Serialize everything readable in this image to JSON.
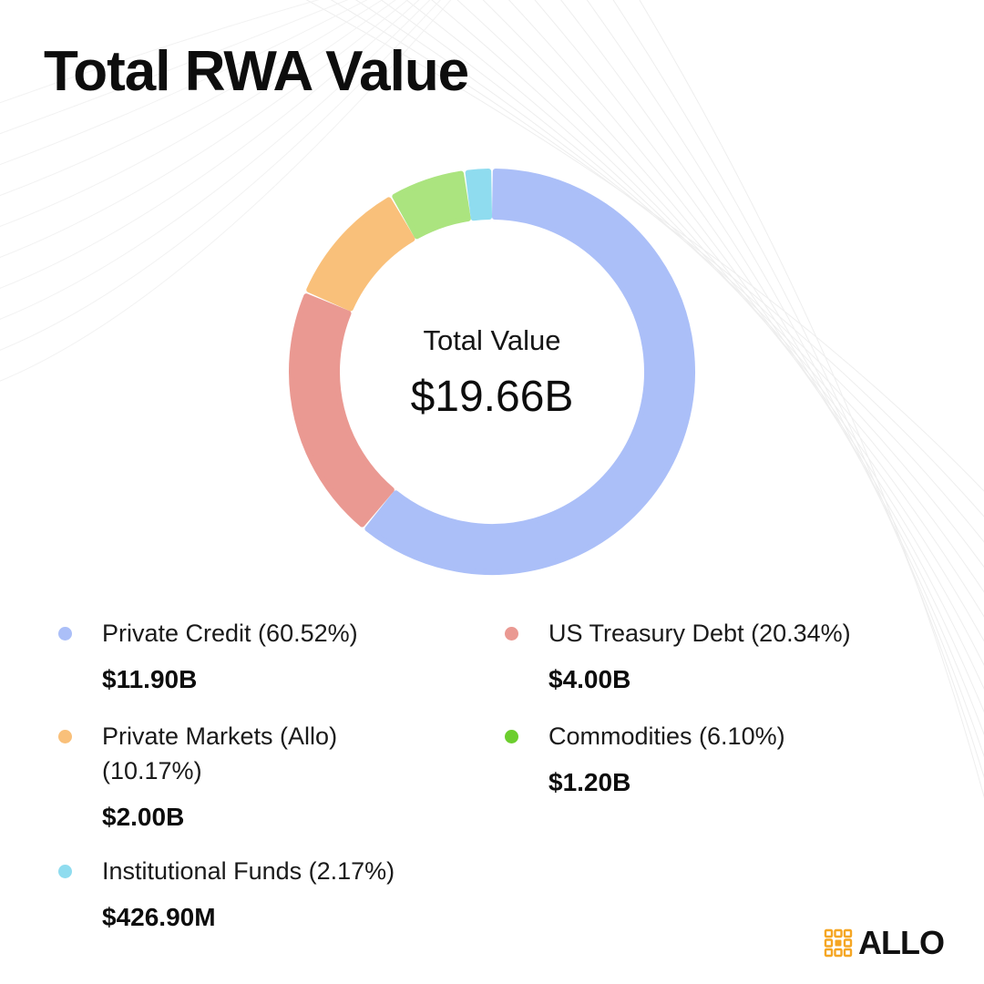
{
  "title": "Total RWA Value",
  "center": {
    "label": "Total Value",
    "value": "$19.66B"
  },
  "chart_data": {
    "type": "pie",
    "categories": [
      "Private Credit",
      "US Treasury Debt",
      "Private Markets (Allo)",
      "Commodities",
      "Institutional Funds"
    ],
    "values": [
      11.9,
      4.0,
      2.0,
      1.2,
      0.4269
    ],
    "percents": [
      60.52,
      20.34,
      10.17,
      6.1,
      2.17
    ],
    "unit": "B",
    "total": 19.66
  },
  "legend": [
    {
      "label": "Private Credit (60.52%)",
      "value": "$11.90B",
      "color": "#abbff8"
    },
    {
      "label": "US Treasury Debt (20.34%)",
      "value": "$4.00B",
      "color": "#ea9992"
    },
    {
      "label": "Private Markets (Allo) (10.17%)",
      "value": "$2.00B",
      "color": "#f9c07a"
    },
    {
      "label": "Commodities (6.10%)",
      "value": "$1.20B",
      "color": "#6cce2e"
    },
    {
      "label": "Institutional Funds (2.17%)",
      "value": "$426.90M",
      "color": "#8fdcef"
    }
  ],
  "slice_colors": [
    "#abbff8",
    "#ea9992",
    "#f9c07a",
    "#abe47f",
    "#8fdcef"
  ],
  "logo": {
    "text": "ALLO",
    "icon": "allo-logo-icon",
    "color": "#f5a623"
  }
}
